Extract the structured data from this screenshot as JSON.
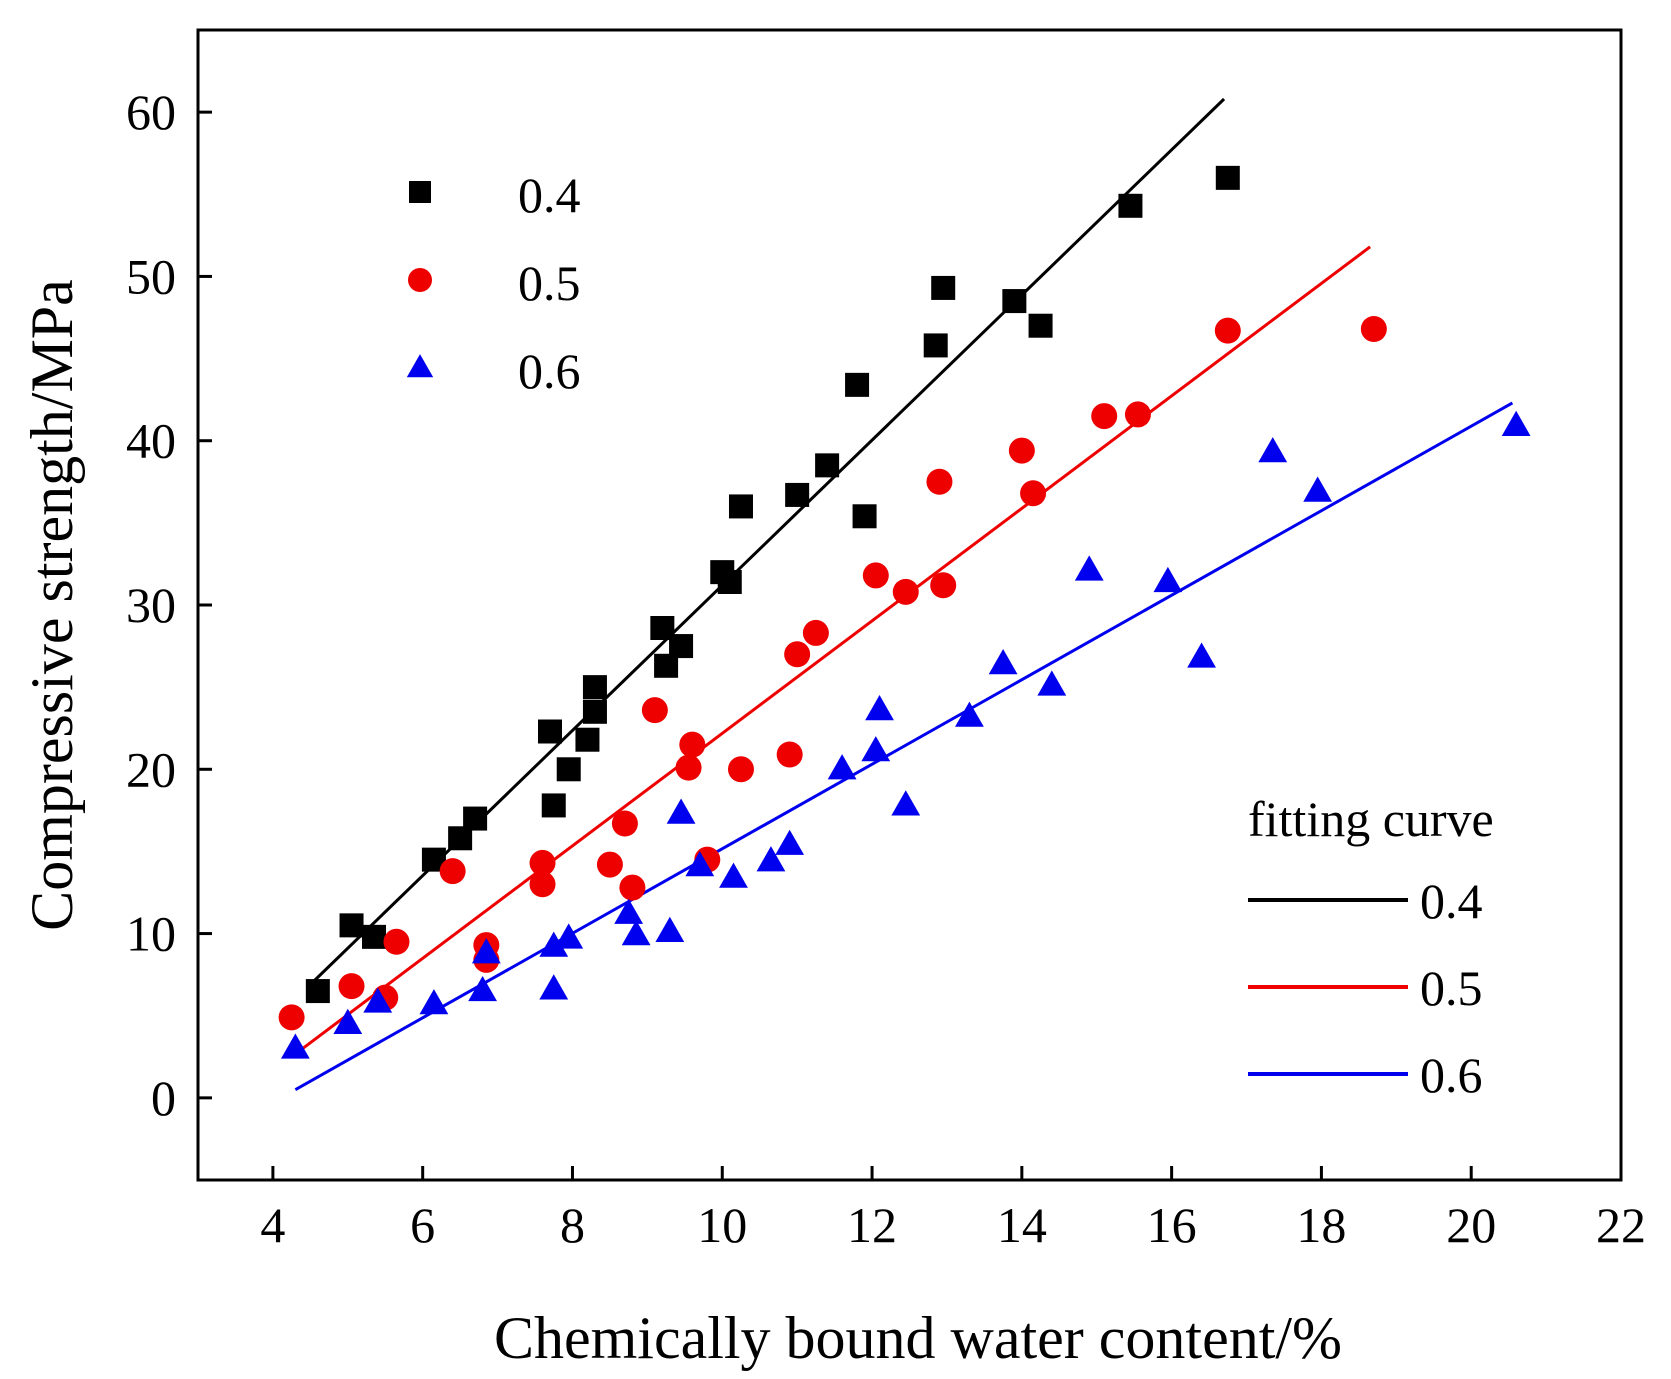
{
  "chart_data": {
    "type": "scatter",
    "title": "",
    "xlabel": "Chemically bound water content/%",
    "ylabel": "Compressive strength/MPa",
    "xlim": [
      3,
      22
    ],
    "ylim": [
      -5,
      65
    ],
    "xticks": [
      4,
      6,
      8,
      10,
      12,
      14,
      16,
      18,
      20,
      22
    ],
    "yticks": [
      0,
      10,
      20,
      30,
      40,
      50,
      60
    ],
    "grid": false,
    "series": [
      {
        "name": "0.4",
        "marker": "square",
        "color": "#000000",
        "points": [
          [
            4.6,
            6.5
          ],
          [
            5.05,
            10.5
          ],
          [
            5.35,
            9.8
          ],
          [
            6.15,
            14.5
          ],
          [
            6.5,
            15.8
          ],
          [
            6.7,
            17.0
          ],
          [
            7.7,
            22.3
          ],
          [
            7.75,
            17.8
          ],
          [
            7.95,
            20.0
          ],
          [
            8.2,
            21.8
          ],
          [
            8.3,
            25.0
          ],
          [
            8.3,
            23.5
          ],
          [
            9.2,
            28.6
          ],
          [
            9.25,
            26.3
          ],
          [
            9.45,
            27.5
          ],
          [
            10.0,
            32.0
          ],
          [
            10.1,
            31.4
          ],
          [
            10.25,
            36.0
          ],
          [
            11.0,
            36.7
          ],
          [
            11.4,
            38.5
          ],
          [
            11.8,
            43.4
          ],
          [
            11.9,
            35.4
          ],
          [
            12.85,
            45.8
          ],
          [
            12.95,
            49.3
          ],
          [
            13.9,
            48.5
          ],
          [
            14.25,
            47.0
          ],
          [
            15.45,
            54.3
          ],
          [
            16.75,
            56.0
          ]
        ]
      },
      {
        "name": "0.5",
        "marker": "circle",
        "color": "#ee0000",
        "points": [
          [
            4.25,
            4.9
          ],
          [
            5.05,
            6.8
          ],
          [
            5.5,
            6.1
          ],
          [
            5.65,
            9.5
          ],
          [
            6.4,
            13.8
          ],
          [
            6.85,
            9.3
          ],
          [
            6.85,
            8.4
          ],
          [
            7.6,
            14.3
          ],
          [
            7.6,
            13.0
          ],
          [
            8.5,
            14.2
          ],
          [
            8.7,
            16.7
          ],
          [
            8.8,
            12.8
          ],
          [
            9.1,
            23.6
          ],
          [
            9.55,
            20.1
          ],
          [
            9.6,
            21.5
          ],
          [
            9.8,
            14.5
          ],
          [
            10.25,
            20.0
          ],
          [
            10.9,
            20.9
          ],
          [
            11.0,
            27.0
          ],
          [
            11.25,
            28.3
          ],
          [
            12.05,
            31.8
          ],
          [
            12.45,
            30.8
          ],
          [
            12.9,
            37.5
          ],
          [
            12.95,
            31.2
          ],
          [
            14.0,
            39.4
          ],
          [
            14.15,
            36.8
          ],
          [
            15.1,
            41.5
          ],
          [
            15.55,
            41.6
          ],
          [
            16.75,
            46.7
          ],
          [
            18.7,
            46.8
          ]
        ]
      },
      {
        "name": "0.6",
        "marker": "triangle",
        "color": "#0000ee",
        "points": [
          [
            4.3,
            3.0
          ],
          [
            5.0,
            4.5
          ],
          [
            5.4,
            5.8
          ],
          [
            6.15,
            5.7
          ],
          [
            6.8,
            6.5
          ],
          [
            6.85,
            8.8
          ],
          [
            7.75,
            6.6
          ],
          [
            7.75,
            9.2
          ],
          [
            7.95,
            9.7
          ],
          [
            8.75,
            11.2
          ],
          [
            8.85,
            9.9
          ],
          [
            9.3,
            10.1
          ],
          [
            9.45,
            17.3
          ],
          [
            9.7,
            14.1
          ],
          [
            10.15,
            13.4
          ],
          [
            10.65,
            14.4
          ],
          [
            10.9,
            15.4
          ],
          [
            11.6,
            20.0
          ],
          [
            12.05,
            21.1
          ],
          [
            12.1,
            23.6
          ],
          [
            12.45,
            17.8
          ],
          [
            13.3,
            23.2
          ],
          [
            13.75,
            26.4
          ],
          [
            14.4,
            25.1
          ],
          [
            14.9,
            32.1
          ],
          [
            15.95,
            31.4
          ],
          [
            16.4,
            26.8
          ],
          [
            17.35,
            39.3
          ],
          [
            17.95,
            36.9
          ],
          [
            20.6,
            40.9
          ]
        ]
      }
    ],
    "fits": [
      {
        "name": "0.4",
        "color": "#000000",
        "start": [
          4.5,
          6.9
        ],
        "end": [
          16.7,
          60.8
        ]
      },
      {
        "name": "0.5",
        "color": "#ee0000",
        "start": [
          4.25,
          2.5
        ],
        "end": [
          18.65,
          51.8
        ]
      },
      {
        "name": "0.6",
        "color": "#0000ee",
        "start": [
          4.3,
          0.5
        ],
        "end": [
          20.55,
          42.3
        ]
      }
    ],
    "legend_points": {
      "position": "top-left",
      "entries": [
        {
          "label": "0.4",
          "marker": "square",
          "color": "#000000"
        },
        {
          "label": "0.5",
          "marker": "circle",
          "color": "#ee0000"
        },
        {
          "label": "0.6",
          "marker": "triangle",
          "color": "#0000ee"
        }
      ]
    },
    "legend_fits": {
      "position": "bottom-right",
      "title": "fitting curve",
      "entries": [
        {
          "label": "0.4",
          "color": "#000000"
        },
        {
          "label": "0.5",
          "color": "#ee0000"
        },
        {
          "label": "0.6",
          "color": "#0000ee"
        }
      ]
    }
  }
}
